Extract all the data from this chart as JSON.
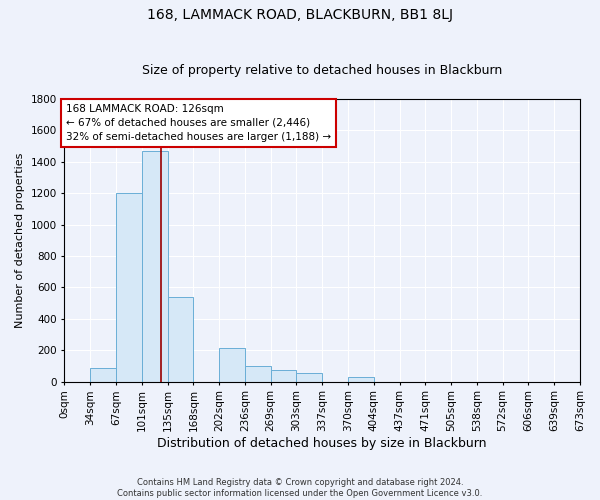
{
  "title": "168, LAMMACK ROAD, BLACKBURN, BB1 8LJ",
  "subtitle": "Size of property relative to detached houses in Blackburn",
  "xlabel": "Distribution of detached houses by size in Blackburn",
  "ylabel": "Number of detached properties",
  "footnote1": "Contains HM Land Registry data © Crown copyright and database right 2024.",
  "footnote2": "Contains public sector information licensed under the Open Government Licence v3.0.",
  "bin_edges": [
    0,
    33.65,
    67.3,
    100.95,
    134.6,
    168.25,
    201.9,
    235.55,
    269.2,
    302.85,
    336.5,
    370.15,
    403.8,
    437.45,
    471.1,
    504.75,
    538.4,
    572.05,
    605.7,
    639.35,
    673.0
  ],
  "bin_labels": [
    "0sqm",
    "34sqm",
    "67sqm",
    "101sqm",
    "135sqm",
    "168sqm",
    "202sqm",
    "236sqm",
    "269sqm",
    "303sqm",
    "337sqm",
    "370sqm",
    "404sqm",
    "437sqm",
    "471sqm",
    "505sqm",
    "538sqm",
    "572sqm",
    "606sqm",
    "639sqm",
    "673sqm"
  ],
  "bar_heights": [
    0,
    90,
    1200,
    1470,
    540,
    0,
    215,
    100,
    75,
    55,
    0,
    30,
    0,
    0,
    0,
    0,
    0,
    0,
    0,
    0
  ],
  "bar_color": "#d6e8f7",
  "bar_edge_color": "#6aaed6",
  "property_size": 126,
  "vline_color": "#990000",
  "annotation_text": "168 LAMMACK ROAD: 126sqm\n← 67% of detached houses are smaller (2,446)\n32% of semi-detached houses are larger (1,188) →",
  "annotation_box_color": "#ffffff",
  "annotation_box_edge": "#cc0000",
  "ylim": [
    0,
    1800
  ],
  "yticks": [
    0,
    200,
    400,
    600,
    800,
    1000,
    1200,
    1400,
    1600,
    1800
  ],
  "background_color": "#eef2fb",
  "plot_bg_color": "#eef2fb",
  "title_fontsize": 10,
  "subtitle_fontsize": 9,
  "ylabel_fontsize": 8,
  "xlabel_fontsize": 9,
  "tick_fontsize": 7.5
}
